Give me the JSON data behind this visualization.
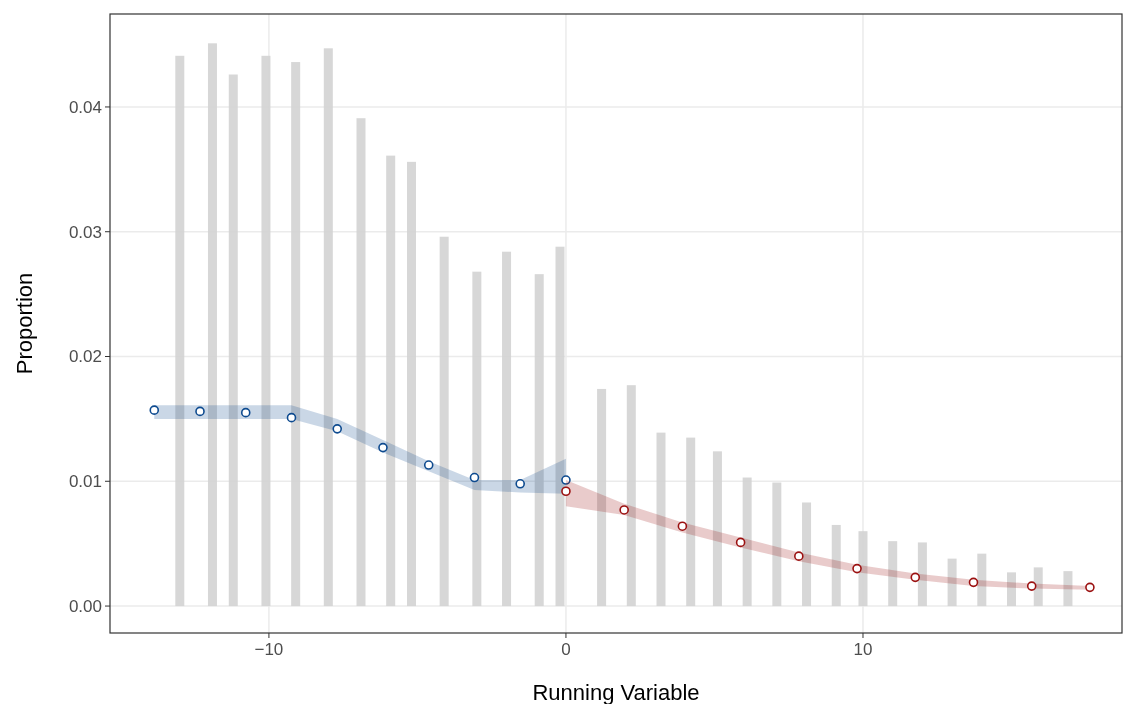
{
  "chart_data": {
    "type": "bar",
    "xlabel": "Running Variable",
    "ylabel": "Proportion",
    "xlim": [
      -15.35,
      18.72
    ],
    "ylim": [
      -0.00216,
      0.04745
    ],
    "xticks": [
      {
        "value": -10,
        "label": "−10"
      },
      0,
      10
    ],
    "yticks": [
      {
        "value": 0,
        "label": "0.00"
      },
      {
        "value": 0.01,
        "label": "0.01"
      },
      {
        "value": 0.02,
        "label": "0.02"
      },
      {
        "value": 0.03,
        "label": "0.03"
      },
      {
        "value": 0.04,
        "label": "0.04"
      }
    ],
    "grid": true,
    "series": [
      {
        "color": "#d3d3d3",
        "x": [
          -13,
          -11.9,
          -11.2,
          -10.1,
          -9.1,
          -8,
          -6.9,
          -5.9,
          -5.2,
          -4.1,
          -3,
          -2,
          -0.9,
          -0.2,
          1.2,
          2.2,
          3.2,
          4.2,
          5.1,
          6.1,
          7.1,
          8.1,
          9.1,
          10,
          11,
          12,
          13,
          14,
          15,
          15.9,
          16.9
        ],
        "values": [
          0.0441,
          0.0451,
          0.0426,
          0.0441,
          0.0436,
          0.0447,
          0.0391,
          0.0361,
          0.0356,
          0.0296,
          0.0268,
          0.0284,
          0.0266,
          0.0288,
          0.0174,
          0.0177,
          0.0139,
          0.0135,
          0.0124,
          0.0103,
          0.0099,
          0.0083,
          0.0065,
          0.006,
          0.0052,
          0.0051,
          0.0038,
          0.0042,
          0.0027,
          0.0031,
          0.0028
        ]
      },
      {
        "type": "scatter",
        "color": "#0d4a8f",
        "marker": "circle",
        "x": [
          -13.86,
          -12.32,
          -10.78,
          -9.24,
          -7.7,
          -6.16,
          -4.62,
          -3.08,
          -1.54,
          0
        ],
        "values": [
          0.0157,
          0.0156,
          0.0155,
          0.0151,
          0.0142,
          0.0127,
          0.0113,
          0.0103,
          0.0098,
          0.0101
        ],
        "upper": [
          0.0161,
          0.0161,
          0.0161,
          0.0161,
          0.015,
          0.0133,
          0.0116,
          0.0101,
          0.0101,
          0.0118
        ],
        "lower": [
          0.015,
          0.015,
          0.015,
          0.015,
          0.014,
          0.0123,
          0.0108,
          0.0093,
          0.0091,
          0.009
        ]
      },
      {
        "type": "scatter",
        "color": "#9b1111",
        "marker": "circle",
        "x": [
          0,
          1.96,
          3.92,
          5.88,
          7.84,
          9.8,
          11.76,
          13.72,
          15.68,
          17.64
        ],
        "values": [
          0.0092,
          0.0077,
          0.0064,
          0.0051,
          0.004,
          0.003,
          0.0023,
          0.0019,
          0.0016,
          0.0015
        ],
        "upper": [
          0.0101,
          0.0082,
          0.0067,
          0.0055,
          0.0043,
          0.0033,
          0.0026,
          0.0021,
          0.0018,
          0.0016
        ],
        "lower": [
          0.008,
          0.0073,
          0.0059,
          0.0047,
          0.0036,
          0.0027,
          0.0021,
          0.0016,
          0.0014,
          0.0013
        ]
      }
    ]
  }
}
